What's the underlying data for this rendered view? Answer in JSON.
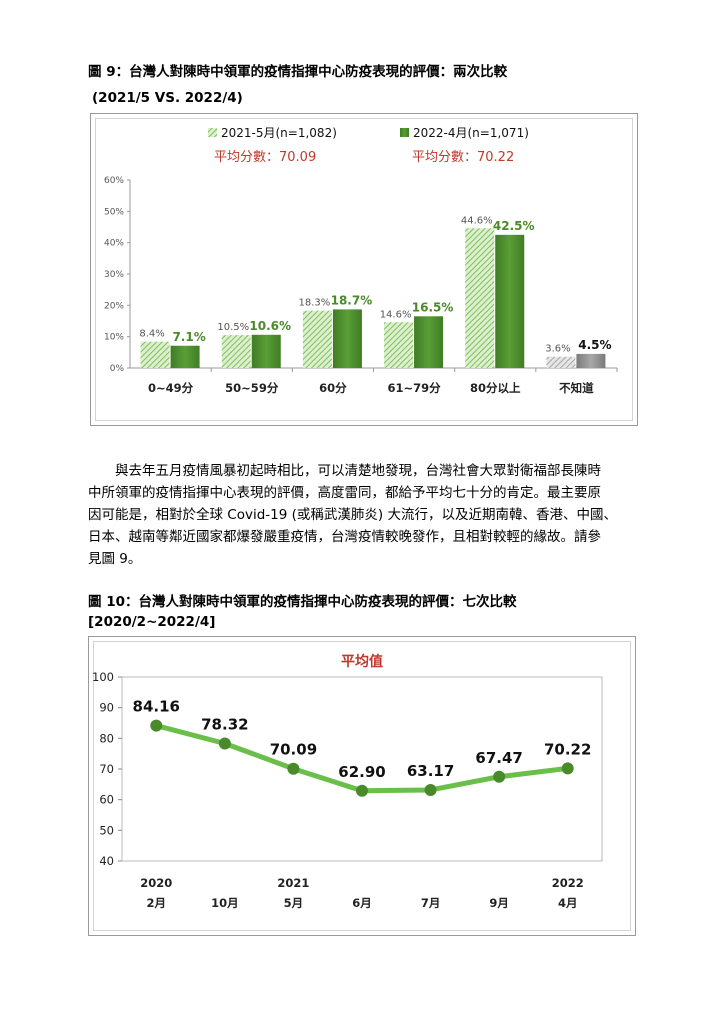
{
  "fig9": {
    "caption_line1": "圖 9：台灣人對陳時中領軍的疫情指揮中心防疫表現的評價：兩次比較",
    "caption_line2": "(2021/5 VS. 2022/4)"
  },
  "paragraph": {
    "lines": [
      "與去年五月疫情風暴初起時相比，可以清楚地發現，台灣社會大眾對衛福部長陳時",
      "中所領軍的疫情指揮中心表現的評價，高度雷同，都給予平均七十分的肯定。最主要原",
      "因可能是，相對於全球 Covid-19 (或稱武漢肺炎) 大流行，以及近期南韓、香港、中國、",
      "日本、越南等鄰近國家都爆發嚴重疫情，台灣疫情較晚發作，且相對較輕的緣故。請參",
      "見圖 9。"
    ]
  },
  "fig10": {
    "caption_line1": "圖 10：台灣人對陳時中領軍的疫情指揮中心防疫表現的評價：七次比較",
    "caption_line2": "[2020/2~2022/4]"
  },
  "colors": {
    "series_2021": "#a9d18e",
    "series_2022": "#4a8a2a",
    "unknown_2021": "#bfbfbf",
    "unknown_2022": "#8c8c8c",
    "avg_text": "#c0392b",
    "line": "#6abf4b",
    "marker": "#4a8a2a"
  },
  "chart_data": [
    {
      "type": "bar",
      "categories": [
        "0~49分",
        "50~59分",
        "60分",
        "61~79分",
        "80分以上",
        "不知道"
      ],
      "series": [
        {
          "name": "2021-5月(n=1,082)",
          "values": [
            8.4,
            10.5,
            18.3,
            14.6,
            44.6,
            3.6
          ],
          "labels": [
            "8.4%",
            "10.5%",
            "18.3%",
            "14.6%",
            "44.6%",
            "3.6%"
          ],
          "average_label": "平均分數：70.09"
        },
        {
          "name": "2022-4月(n=1,071)",
          "values": [
            7.1,
            10.6,
            18.7,
            16.5,
            42.5,
            4.5
          ],
          "labels": [
            "7.1%",
            "10.6%",
            "18.7%",
            "16.5%",
            "42.5%",
            "4.5%"
          ],
          "average_label": "平均分數：70.22"
        }
      ],
      "ylim": [
        0,
        60
      ],
      "yticks": [
        "0%",
        "10%",
        "20%",
        "30%",
        "40%",
        "50%",
        "60%"
      ],
      "legend_position": "top",
      "grid": false
    },
    {
      "type": "line",
      "title": "平均值",
      "x": [
        "2020 2月",
        "10月",
        "2021 5月",
        "6月",
        "7月",
        "9月",
        "2022 4月"
      ],
      "x_year_labels": [
        "2020",
        "",
        "2021",
        "",
        "",
        "",
        "2022"
      ],
      "x_month_labels": [
        "2月",
        "10月",
        "5月",
        "6月",
        "7月",
        "9月",
        "4月"
      ],
      "series": [
        {
          "values": [
            84.16,
            78.32,
            70.09,
            62.9,
            63.17,
            67.47,
            70.22
          ],
          "labels": [
            "84.16",
            "78.32",
            "70.09",
            "62.90",
            "63.17",
            "67.47",
            "70.22"
          ]
        }
      ],
      "ylim": [
        40,
        100
      ],
      "yticks": [
        "40",
        "50",
        "60",
        "70",
        "80",
        "90",
        "100"
      ],
      "grid": false
    }
  ]
}
